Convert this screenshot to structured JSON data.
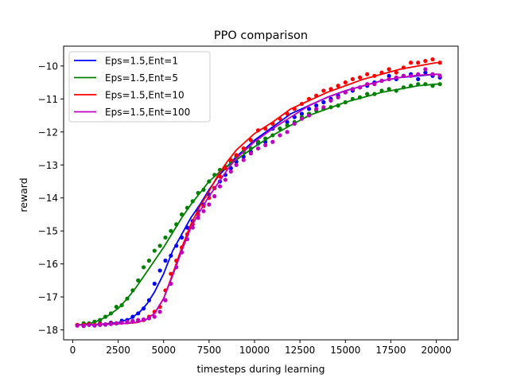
{
  "chart_data": {
    "type": "line",
    "title": "PPO comparison",
    "xlabel": "timesteps during learning",
    "ylabel": "reward",
    "xlim": [
      -500,
      21200
    ],
    "ylim": [
      -18.3,
      -9.4
    ],
    "xticks": [
      0,
      2500,
      5000,
      7500,
      10000,
      12500,
      15000,
      17500,
      20000
    ],
    "xtick_labels": [
      "0",
      "2500",
      "5000",
      "7500",
      "10000",
      "12500",
      "15000",
      "17500",
      "20000"
    ],
    "yticks": [
      -18,
      -17,
      -16,
      -15,
      -14,
      -13,
      -12,
      -11,
      -10
    ],
    "ytick_labels": [
      "−18",
      "−17",
      "−16",
      "−15",
      "−14",
      "−13",
      "−12",
      "−11",
      "−10"
    ],
    "grid": false,
    "legend": "top-left",
    "series": [
      {
        "name": "Eps=1.5,Ent=1",
        "color": "#0000ff",
        "line": {
          "x": [
            250,
            1500,
            2500,
            3200,
            3700,
            4100,
            4500,
            5000,
            5500,
            6000,
            6500,
            7000,
            7500,
            8000,
            9000,
            10000,
            11000,
            12000,
            13000,
            14000,
            15000,
            16000,
            17000,
            18000,
            19000,
            20000,
            20250
          ],
          "y": [
            -17.85,
            -17.83,
            -17.78,
            -17.65,
            -17.45,
            -17.2,
            -16.85,
            -16.3,
            -15.6,
            -15.1,
            -14.6,
            -14.2,
            -13.75,
            -13.35,
            -12.75,
            -12.25,
            -11.85,
            -11.45,
            -11.2,
            -10.95,
            -10.75,
            -10.6,
            -10.45,
            -10.35,
            -10.3,
            -10.25,
            -10.27
          ]
        },
        "points": {
          "x": [
            250,
            600,
            900,
            1200,
            1500,
            1800,
            2100,
            2400,
            2700,
            3000,
            3300,
            3600,
            3900,
            4200,
            4500,
            4800,
            5100,
            5400,
            5700,
            6000,
            6300,
            6600,
            6900,
            7200,
            7500,
            7800,
            8100,
            8400,
            8700,
            9000,
            9400,
            9800,
            10200,
            10600,
            11000,
            11400,
            11800,
            12200,
            12600,
            13000,
            13400,
            13800,
            14200,
            14600,
            15000,
            15400,
            15800,
            16200,
            16600,
            17000,
            17400,
            17800,
            18200,
            18600,
            19000,
            19400,
            19800,
            20200
          ],
          "y": [
            -17.85,
            -17.88,
            -17.82,
            -17.86,
            -17.8,
            -17.84,
            -17.78,
            -17.8,
            -17.72,
            -17.7,
            -17.6,
            -17.5,
            -17.35,
            -17.1,
            -16.6,
            -16.2,
            -15.9,
            -15.75,
            -15.45,
            -15.2,
            -14.9,
            -14.7,
            -14.4,
            -14.2,
            -13.9,
            -13.7,
            -13.5,
            -13.3,
            -13.1,
            -12.9,
            -12.75,
            -12.6,
            -12.35,
            -12.3,
            -11.9,
            -11.9,
            -11.7,
            -11.55,
            -11.45,
            -11.3,
            -11.2,
            -11.1,
            -11.0,
            -10.9,
            -10.8,
            -10.75,
            -10.65,
            -10.6,
            -10.5,
            -10.45,
            -10.3,
            -10.4,
            -10.3,
            -10.25,
            -10.4,
            -10.2,
            -10.3,
            -10.35
          ]
        }
      },
      {
        "name": "Eps=1.5,Ent=5",
        "color": "#008000",
        "line": {
          "x": [
            250,
            1000,
            1500,
            2000,
            2500,
            3000,
            3500,
            4000,
            4500,
            5000,
            5500,
            6000,
            6500,
            7000,
            7500,
            8000,
            9000,
            10000,
            11000,
            12000,
            13000,
            14000,
            15000,
            16000,
            17000,
            18000,
            19000,
            20000,
            20250
          ],
          "y": [
            -17.85,
            -17.8,
            -17.7,
            -17.55,
            -17.35,
            -17.05,
            -16.7,
            -16.3,
            -15.9,
            -15.5,
            -15.05,
            -14.6,
            -14.2,
            -13.85,
            -13.5,
            -13.25,
            -12.85,
            -12.45,
            -12.1,
            -11.8,
            -11.5,
            -11.3,
            -11.1,
            -10.95,
            -10.8,
            -10.7,
            -10.6,
            -10.55,
            -10.55
          ]
        },
        "points": {
          "x": [
            250,
            600,
            900,
            1200,
            1500,
            1800,
            2100,
            2400,
            2700,
            3000,
            3300,
            3600,
            3900,
            4200,
            4500,
            4800,
            5100,
            5400,
            5700,
            6000,
            6300,
            6600,
            6900,
            7200,
            7500,
            7800,
            8100,
            8400,
            8700,
            9000,
            9400,
            9800,
            10200,
            10600,
            11000,
            11400,
            11800,
            12200,
            12600,
            13000,
            13400,
            13800,
            14200,
            14600,
            15000,
            15400,
            15800,
            16200,
            16600,
            17000,
            17400,
            17800,
            18200,
            18600,
            19000,
            19400,
            19800,
            20200
          ],
          "y": [
            -17.85,
            -17.8,
            -17.8,
            -17.75,
            -17.7,
            -17.6,
            -17.5,
            -17.3,
            -17.25,
            -17.05,
            -16.8,
            -16.5,
            -16.1,
            -15.9,
            -15.6,
            -15.45,
            -15.2,
            -15.0,
            -14.8,
            -14.5,
            -14.3,
            -14.1,
            -13.85,
            -13.75,
            -13.5,
            -13.3,
            -13.15,
            -13.05,
            -12.9,
            -12.75,
            -12.6,
            -12.5,
            -12.3,
            -12.2,
            -12.1,
            -11.9,
            -11.8,
            -11.7,
            -11.55,
            -11.45,
            -11.35,
            -11.3,
            -11.25,
            -11.2,
            -11.1,
            -11.0,
            -10.95,
            -10.85,
            -10.85,
            -10.75,
            -10.7,
            -10.75,
            -10.65,
            -10.6,
            -10.55,
            -10.55,
            -10.6,
            -10.55
          ]
        }
      },
      {
        "name": "Eps=1.5,Ent=10",
        "color": "#ff0000",
        "line": {
          "x": [
            250,
            2000,
            3000,
            3500,
            4000,
            4500,
            5000,
            5500,
            6000,
            6500,
            7000,
            7500,
            8000,
            8500,
            9000,
            10000,
            11000,
            12000,
            13000,
            14000,
            15000,
            16000,
            17000,
            18000,
            19000,
            20000,
            20250
          ],
          "y": [
            -17.85,
            -17.83,
            -17.8,
            -17.78,
            -17.7,
            -17.5,
            -17.05,
            -16.3,
            -15.5,
            -14.8,
            -14.25,
            -13.8,
            -13.3,
            -12.9,
            -12.55,
            -12.05,
            -11.7,
            -11.3,
            -11.05,
            -10.8,
            -10.6,
            -10.4,
            -10.25,
            -10.1,
            -10.0,
            -9.9,
            -9.9
          ]
        },
        "points": {
          "x": [
            250,
            600,
            900,
            1200,
            1500,
            1800,
            2100,
            2400,
            2700,
            3000,
            3300,
            3600,
            3900,
            4200,
            4500,
            4800,
            5100,
            5400,
            5700,
            6000,
            6300,
            6600,
            6900,
            7200,
            7500,
            7800,
            8100,
            8400,
            8700,
            9000,
            9400,
            9800,
            10200,
            10600,
            11000,
            11400,
            11800,
            12200,
            12600,
            13000,
            13400,
            13800,
            14200,
            14600,
            15000,
            15400,
            15800,
            16200,
            16600,
            17000,
            17400,
            17800,
            18200,
            18600,
            19000,
            19400,
            19800,
            20200
          ],
          "y": [
            -17.85,
            -17.85,
            -17.83,
            -17.85,
            -17.82,
            -17.83,
            -17.8,
            -17.8,
            -17.78,
            -17.77,
            -17.75,
            -17.73,
            -17.7,
            -17.6,
            -17.45,
            -17.3,
            -16.8,
            -16.3,
            -15.9,
            -15.5,
            -15.1,
            -14.8,
            -14.5,
            -14.25,
            -14.0,
            -13.7,
            -13.35,
            -13.1,
            -12.85,
            -12.7,
            -12.5,
            -12.25,
            -11.95,
            -11.9,
            -11.75,
            -11.6,
            -11.45,
            -11.3,
            -11.15,
            -11.0,
            -10.9,
            -10.75,
            -10.7,
            -10.6,
            -10.5,
            -10.4,
            -10.35,
            -10.25,
            -10.3,
            -10.2,
            -10.1,
            -10.2,
            -10.05,
            -9.9,
            -9.9,
            -9.85,
            -9.8,
            -9.9
          ]
        }
      },
      {
        "name": "Eps=1.5,Ent=100",
        "color": "#bf00bf",
        "line": {
          "x": [
            250,
            2000,
            3000,
            3500,
            4000,
            4500,
            5000,
            5500,
            6000,
            6500,
            7000,
            7500,
            8000,
            8500,
            9000,
            10000,
            11000,
            12000,
            13000,
            14000,
            15000,
            16000,
            17000,
            18000,
            19000,
            20000,
            20250
          ],
          "y": [
            -17.85,
            -17.83,
            -17.8,
            -17.77,
            -17.7,
            -17.5,
            -17.05,
            -16.35,
            -15.6,
            -14.9,
            -14.4,
            -13.95,
            -13.55,
            -13.15,
            -12.8,
            -12.3,
            -11.9,
            -11.55,
            -11.2,
            -10.95,
            -10.75,
            -10.6,
            -10.45,
            -10.35,
            -10.28,
            -10.25,
            -10.25
          ]
        },
        "points": {
          "x": [
            250,
            600,
            900,
            1200,
            1500,
            1800,
            2100,
            2400,
            2700,
            3000,
            3300,
            3600,
            3900,
            4200,
            4500,
            4800,
            5100,
            5400,
            5700,
            6000,
            6300,
            6600,
            6900,
            7200,
            7500,
            7800,
            8100,
            8400,
            8700,
            9000,
            9400,
            9800,
            10200,
            10600,
            11000,
            11400,
            11800,
            12200,
            12600,
            13000,
            13400,
            13800,
            14200,
            14600,
            15000,
            15400,
            15800,
            16200,
            16600,
            17000,
            17400,
            17800,
            18200,
            18600,
            19000,
            19400,
            19800,
            20200
          ],
          "y": [
            -17.87,
            -17.88,
            -17.85,
            -17.87,
            -17.85,
            -17.83,
            -17.82,
            -17.8,
            -17.78,
            -17.75,
            -17.73,
            -17.7,
            -17.68,
            -17.65,
            -17.6,
            -17.45,
            -17.1,
            -16.6,
            -16.1,
            -15.65,
            -15.25,
            -14.9,
            -14.6,
            -14.4,
            -14.2,
            -13.95,
            -13.65,
            -13.45,
            -13.2,
            -13.0,
            -12.85,
            -12.65,
            -12.5,
            -12.4,
            -12.3,
            -12.1,
            -12.0,
            -11.75,
            -11.6,
            -11.5,
            -11.3,
            -11.25,
            -11.05,
            -10.95,
            -10.8,
            -10.7,
            -10.65,
            -10.55,
            -10.55,
            -10.45,
            -10.4,
            -10.35,
            -10.3,
            -10.3,
            -10.25,
            -10.1,
            -10.25,
            -10.3
          ]
        }
      }
    ]
  }
}
